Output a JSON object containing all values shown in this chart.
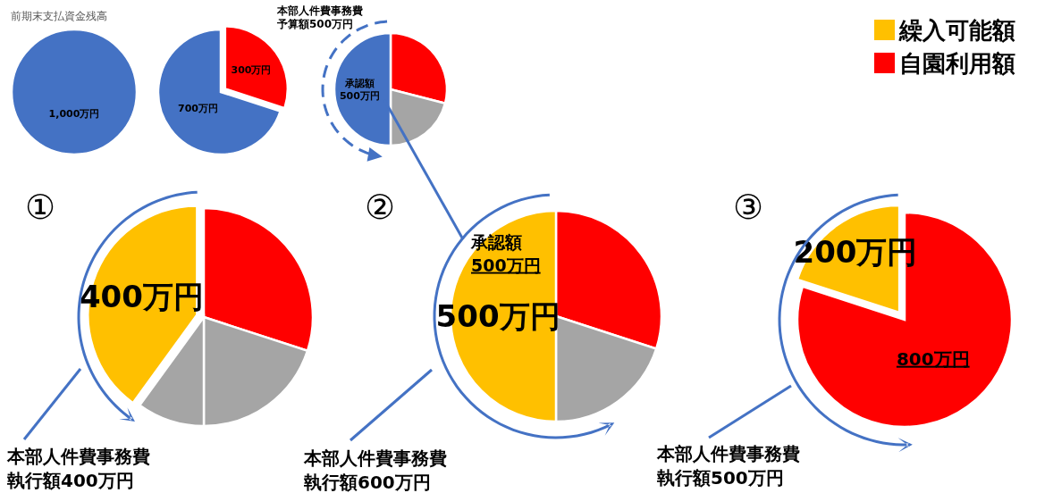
{
  "chart_data": [
    {
      "type": "pie",
      "title": "前期末支払資金残高",
      "categories": [
        null
      ],
      "values": [
        1000
      ],
      "colors": [
        "#4472c4"
      ],
      "value_labels": [
        "1,000万円"
      ]
    },
    {
      "type": "pie",
      "categories": [
        null,
        null
      ],
      "values": [
        300,
        700
      ],
      "colors": [
        "#ff0000",
        "#4472c4"
      ],
      "value_labels": [
        "300万円",
        "700万円"
      ]
    },
    {
      "type": "pie",
      "title": "本部人件費事務費予算額500万円",
      "categories": [
        null,
        null,
        null
      ],
      "values": [
        290,
        210,
        500
      ],
      "colors": [
        "#ff0000",
        "#a5a5a5",
        "#4472c4"
      ],
      "value_labels": [
        null,
        null,
        "承認額\n500万円"
      ]
    },
    {
      "type": "pie",
      "title": "①",
      "categories": [
        "繰入可能額",
        "自園利用額",
        null,
        null
      ],
      "values": [
        400,
        300,
        200,
        100
      ],
      "colors": [
        "#ffc000",
        "#ff0000",
        "#a5a5a5",
        "#a5a5a5"
      ],
      "value_labels": [
        "400万円",
        null,
        null,
        null
      ],
      "annotations": [
        "本部人件費事務費執行額400万円"
      ],
      "legend": "top right"
    },
    {
      "type": "pie",
      "title": "②",
      "categories": [
        null,
        null,
        null
      ],
      "values": [
        300,
        200,
        500
      ],
      "colors": [
        "#ff0000",
        "#a5a5a5",
        "#ffc000"
      ],
      "value_labels": [
        null,
        null,
        "500万円"
      ],
      "annotations": [
        "承認額\n500万円",
        "本部人件費事務費執行額600万円"
      ]
    },
    {
      "type": "pie",
      "title": "③",
      "categories": [
        null,
        null
      ],
      "values": [
        200,
        800
      ],
      "colors": [
        "#ffc000",
        "#ff0000"
      ],
      "value_labels": [
        "200万円",
        "800万円"
      ],
      "annotations": [
        "本部人件費事務費執行額500万円"
      ]
    }
  ]
}
